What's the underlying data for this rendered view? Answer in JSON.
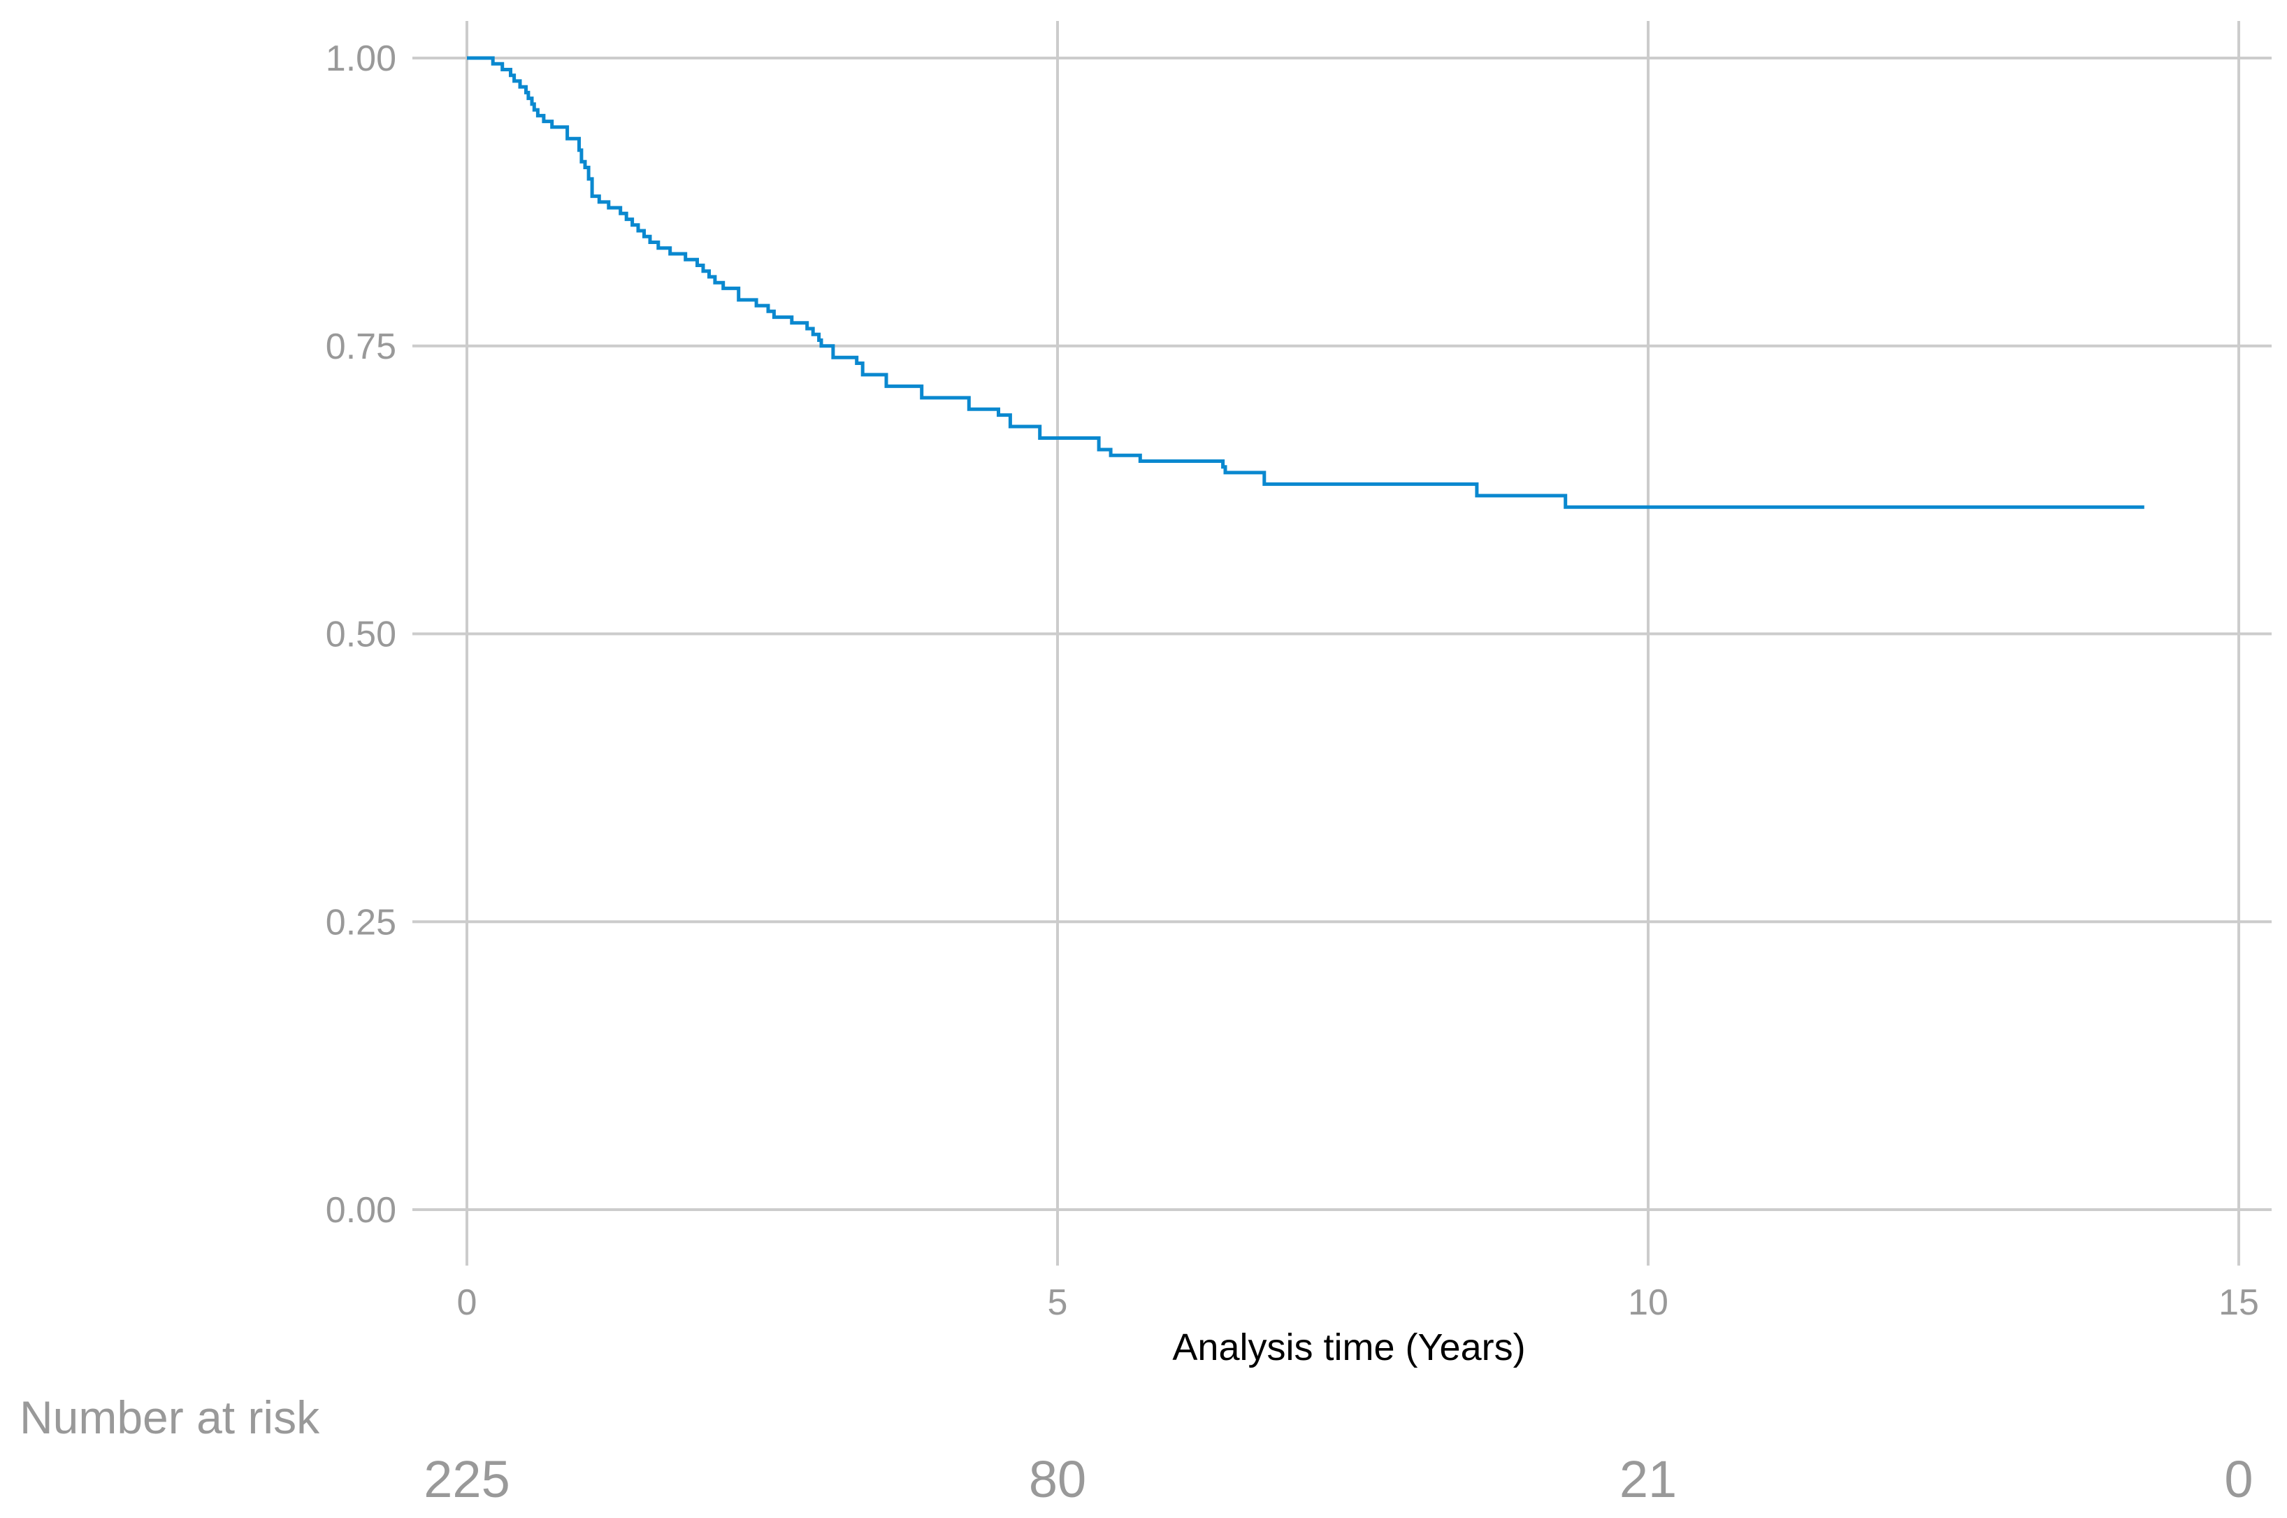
{
  "chart_data": {
    "type": "line",
    "title": "",
    "xlabel": "Analysis time (Years)",
    "ylabel": "",
    "xlim": [
      0,
      15
    ],
    "ylim": [
      0,
      1
    ],
    "x_ticks": [
      0,
      5,
      10,
      15
    ],
    "x_tick_labels": [
      "0",
      "5",
      "10",
      "15"
    ],
    "y_ticks": [
      0,
      0.25,
      0.5,
      0.75,
      1.0
    ],
    "y_tick_labels": [
      "0.00",
      "0.25",
      "0.50",
      "0.75",
      "1.00"
    ],
    "grid": true,
    "series": [
      {
        "step": true,
        "color": "#0a88cf",
        "x": [
          0,
          0.22,
          0.3,
          0.37,
          0.4,
          0.45,
          0.5,
          0.52,
          0.55,
          0.57,
          0.6,
          0.65,
          0.72,
          0.85,
          0.95,
          0.97,
          1.0,
          1.03,
          1.06,
          1.12,
          1.2,
          1.3,
          1.35,
          1.4,
          1.45,
          1.5,
          1.55,
          1.62,
          1.72,
          1.85,
          1.95,
          2.0,
          2.05,
          2.1,
          2.17,
          2.3,
          2.45,
          2.55,
          2.6,
          2.75,
          2.88,
          2.93,
          2.98,
          3.0,
          3.1,
          3.3,
          3.35,
          3.55,
          3.85,
          4.25,
          4.5,
          4.6,
          4.85,
          5.35,
          5.45,
          5.7,
          6.4,
          6.42,
          6.75,
          8.55,
          9.3,
          14.2
        ],
        "y": [
          1.0,
          0.995,
          0.99,
          0.985,
          0.98,
          0.975,
          0.97,
          0.965,
          0.96,
          0.955,
          0.95,
          0.945,
          0.94,
          0.93,
          0.92,
          0.91,
          0.905,
          0.895,
          0.88,
          0.875,
          0.87,
          0.865,
          0.86,
          0.855,
          0.85,
          0.845,
          0.84,
          0.835,
          0.83,
          0.825,
          0.82,
          0.815,
          0.81,
          0.805,
          0.8,
          0.79,
          0.785,
          0.78,
          0.775,
          0.77,
          0.765,
          0.76,
          0.755,
          0.75,
          0.74,
          0.735,
          0.725,
          0.715,
          0.705,
          0.695,
          0.69,
          0.68,
          0.67,
          0.66,
          0.655,
          0.65,
          0.645,
          0.64,
          0.63,
          0.62,
          0.61,
          0.61
        ]
      }
    ]
  },
  "risk_table": {
    "title": "Number at risk",
    "times": [
      0,
      5,
      10,
      15
    ],
    "counts": [
      "225",
      "80",
      "21",
      "0"
    ]
  }
}
